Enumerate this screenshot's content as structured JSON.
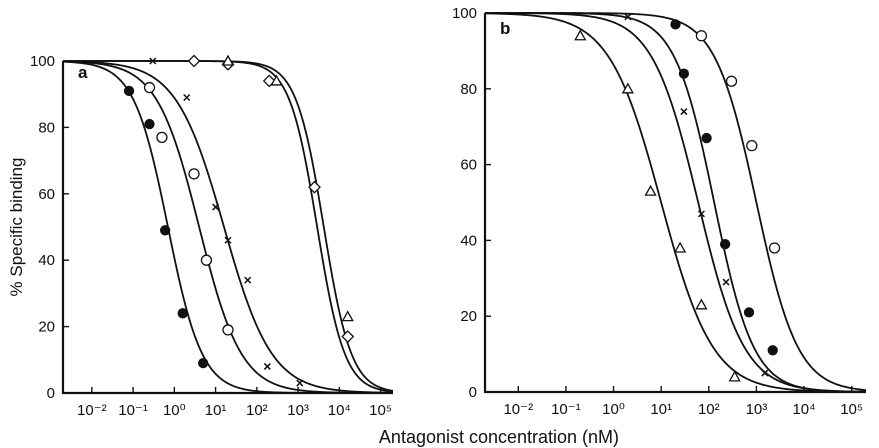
{
  "chart_data": [
    {
      "type": "scatter",
      "panel_label": "a",
      "ylabel": "% Specific binding",
      "xlabel": "Antagonist concentration (nM)",
      "xscale": "log",
      "xlim": [
        0.002,
        200000
      ],
      "ylim": [
        0,
        100
      ],
      "x_tick_values": [
        0.01,
        0.1,
        1,
        10,
        100,
        1000,
        10000,
        100000
      ],
      "x_tick_labels": [
        "10⁻²",
        "10⁻¹",
        "10⁰",
        "10¹",
        "10²",
        "10³",
        "10⁴",
        "10⁵"
      ],
      "y_tick_values": [
        0,
        20,
        40,
        60,
        80,
        100
      ],
      "y_tick_labels": [
        "0",
        "20",
        "40",
        "60",
        "80",
        "100"
      ],
      "series": [
        {
          "marker": "filled-circle",
          "ic50": 0.7,
          "hill": 1.05,
          "x": [
            0.08,
            0.25,
            0.6,
            1.6,
            5
          ],
          "y": [
            91,
            81,
            49,
            24,
            9
          ]
        },
        {
          "marker": "open-circle",
          "ic50": 4,
          "hill": 0.85,
          "x": [
            0.25,
            0.5,
            3,
            6,
            20
          ],
          "y": [
            92,
            77,
            66,
            40,
            19
          ]
        },
        {
          "marker": "cross",
          "ic50": 16,
          "hill": 0.75,
          "x": [
            0.3,
            2,
            10,
            20,
            60,
            180,
            1100
          ],
          "y": [
            100,
            89,
            56,
            46,
            34,
            8,
            3
          ]
        },
        {
          "marker": "diamond",
          "ic50": 2900,
          "hill": 1.3,
          "x": [
            3,
            20,
            200,
            2500,
            16000
          ],
          "y": [
            100,
            99,
            94,
            62,
            17
          ]
        },
        {
          "marker": "triangle",
          "ic50": 4200,
          "hill": 1.3,
          "x": [
            20,
            300,
            16000
          ],
          "y": [
            100,
            94,
            23
          ]
        }
      ]
    },
    {
      "type": "scatter",
      "panel_label": "b",
      "ylabel": "",
      "xlabel": "",
      "xscale": "log",
      "xlim": [
        0.002,
        200000
      ],
      "ylim": [
        0,
        100
      ],
      "x_tick_values": [
        0.01,
        0.1,
        1,
        10,
        100,
        1000,
        10000,
        100000
      ],
      "x_tick_labels": [
        "10⁻²",
        "10⁻¹",
        "10⁰",
        "10¹",
        "10²",
        "10³",
        "10⁴",
        "10⁵"
      ],
      "y_tick_values": [
        0,
        20,
        40,
        60,
        80,
        100
      ],
      "y_tick_labels": [
        "0",
        "20",
        "40",
        "60",
        "80",
        "100"
      ],
      "series": [
        {
          "marker": "triangle",
          "ic50": 10,
          "hill": 0.8,
          "x": [
            0.2,
            2,
            6,
            25,
            70,
            350
          ],
          "y": [
            94,
            80,
            53,
            38,
            23,
            4
          ]
        },
        {
          "marker": "cross",
          "ic50": 60,
          "hill": 0.9,
          "x": [
            2,
            30,
            70,
            230,
            1500
          ],
          "y": [
            99,
            74,
            47,
            29,
            5
          ]
        },
        {
          "marker": "filled-circle",
          "ic50": 130,
          "hill": 1.05,
          "x": [
            20,
            30,
            90,
            220,
            700,
            2200
          ],
          "y": [
            97,
            84,
            67,
            39,
            21,
            11
          ]
        },
        {
          "marker": "open-circle",
          "ic50": 1000,
          "hill": 1.0,
          "x": [
            70,
            300,
            800,
            2400
          ],
          "y": [
            94,
            82,
            65,
            38
          ]
        }
      ]
    }
  ]
}
